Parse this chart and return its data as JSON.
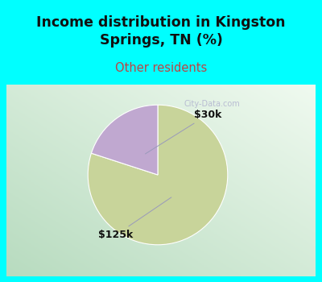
{
  "title": "Income distribution in Kingston\nSprings, TN (%)",
  "subtitle": "Other residents",
  "title_color": "#111111",
  "subtitle_color": "#bb4444",
  "bg_color_top": "#00ffff",
  "slices": [
    80,
    20
  ],
  "slice_colors": [
    "#c8d49a",
    "#c0a8d0"
  ],
  "startangle": 90,
  "figsize": [
    4.0,
    3.5
  ],
  "dpi": 100,
  "watermark": "City-Data.com",
  "label_30k": "$30k",
  "label_125k": "$125k"
}
